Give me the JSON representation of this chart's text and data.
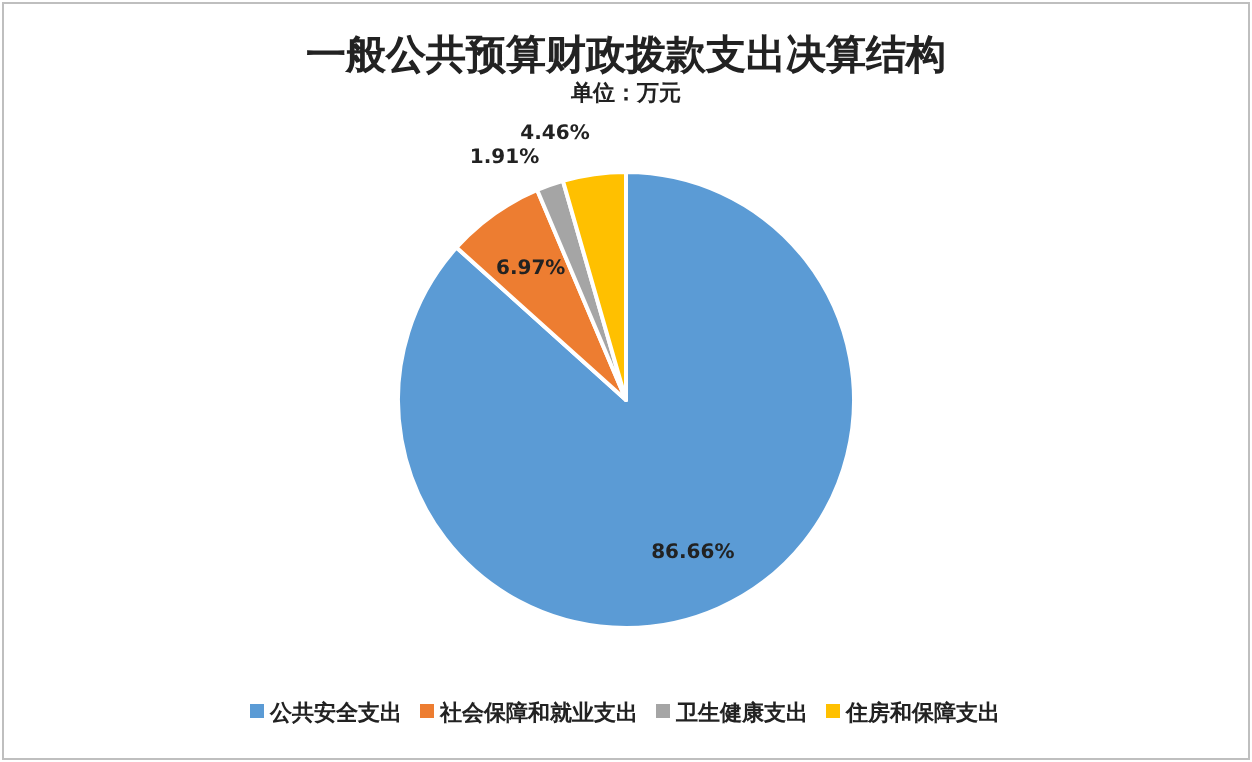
{
  "chart_data": {
    "type": "pie",
    "title": "一般公共预算财政拨款支出决算结构",
    "subtitle": "单位：万元",
    "categories": [
      "公共安全支出",
      "社会保障和就业支出",
      "卫生健康支出",
      "住房和保障支出"
    ],
    "values": [
      86.66,
      6.97,
      1.91,
      4.46
    ],
    "colors": [
      "#5b9bd5",
      "#ed7d31",
      "#a5a5a5",
      "#ffc000"
    ],
    "value_labels": [
      "86.66%",
      "6.97%",
      "1.91%",
      "4.46%"
    ],
    "legend": "bottom"
  }
}
